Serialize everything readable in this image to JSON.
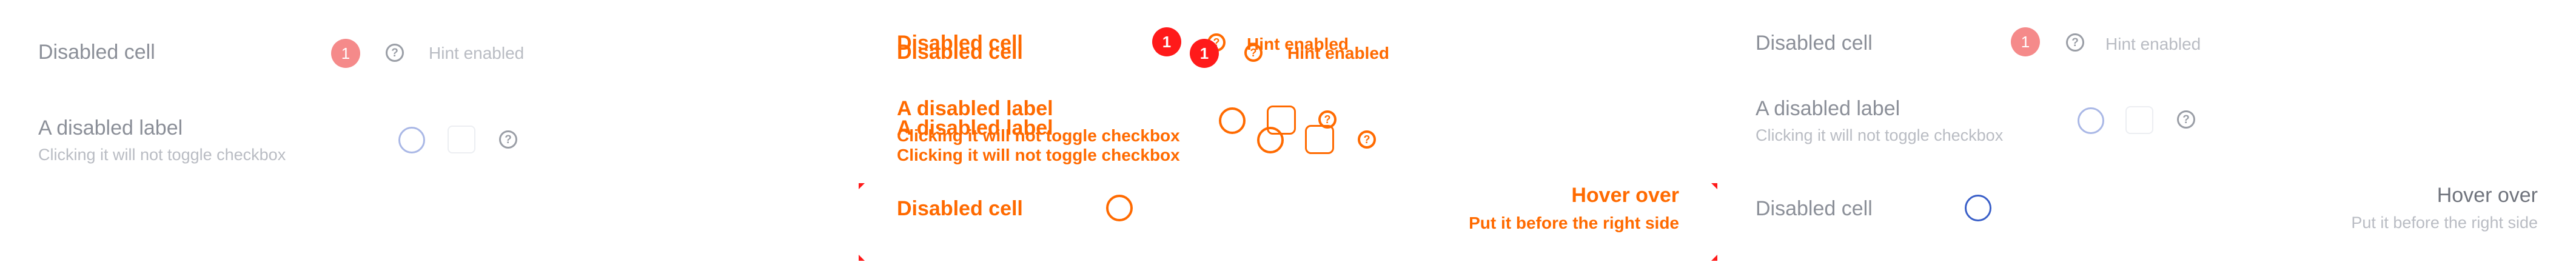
{
  "panels": [
    {
      "row1": {
        "label": "Disabled cell",
        "badge": "1",
        "help_icon": "question-circle-icon",
        "hint": "Hint enabled"
      },
      "row2": {
        "label": "A disabled label",
        "sublabel": "Clicking it will not toggle checkbox",
        "help_icon": "question-circle-icon"
      }
    },
    {
      "row1_a": {
        "label": "Disabled cell",
        "badge": "1",
        "hint": "Hint enabled"
      },
      "row1_b": {
        "label": "Disabled cell",
        "badge": "1",
        "hint": "Hint enabled"
      },
      "row2_a": {
        "label": "A disabled label",
        "sublabel": "Clicking it will not toggle checkbox"
      },
      "row2_b": {
        "label": "A disabled label",
        "sublabel": "Clicking it will not toggle checkbox"
      },
      "row3": {
        "label": "Disabled cell",
        "title": "Hover over",
        "subtitle": "Put it before the right side"
      }
    },
    {
      "row1": {
        "label": "Disabled cell",
        "badge": "1",
        "help_icon": "question-circle-icon",
        "hint": "Hint enabled"
      },
      "row2": {
        "label": "A disabled label",
        "sublabel": "Clicking it will not toggle checkbox",
        "help_icon": "question-circle-icon"
      },
      "row3": {
        "label": "Disabled cell",
        "title": "Hover over",
        "subtitle": "Put it before the right side"
      }
    }
  ],
  "colors": {
    "badge": "#f58a8a",
    "overlay_text": "#ff6a00",
    "overlay_badge": "#ff1a1a",
    "radio_selected": "#3a5fc8"
  }
}
